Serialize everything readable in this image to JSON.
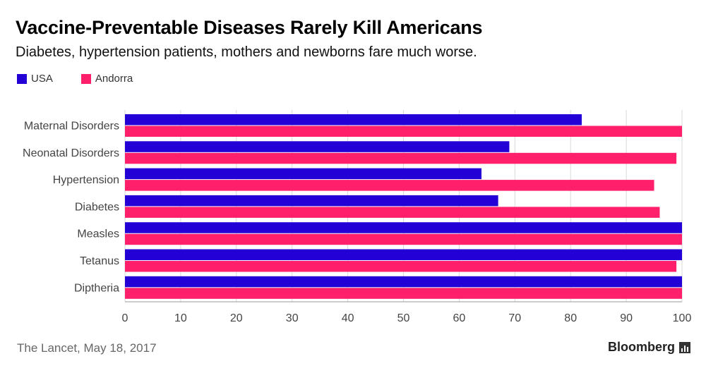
{
  "header": {
    "title": "Vaccine-Preventable Diseases Rarely Kill Americans",
    "subtitle": "Diabetes, hypertension patients, mothers and newborns fare much worse."
  },
  "footer": {
    "source": "The Lancet, May 18, 2017",
    "brand": "Bloomberg"
  },
  "colors": {
    "usa": "#2300d6",
    "andorra": "#ff1f6b",
    "grid": "#d9d9d9",
    "tick_text": "#444444"
  },
  "chart_data": {
    "type": "bar",
    "orientation": "horizontal",
    "categories": [
      "Maternal Disorders",
      "Neonatal Disorders",
      "Hypertension",
      "Diabetes",
      "Measles",
      "Tetanus",
      "Diptheria"
    ],
    "series": [
      {
        "name": "USA",
        "values": [
          82,
          69,
          64,
          67,
          100,
          100,
          100
        ]
      },
      {
        "name": "Andorra",
        "values": [
          100,
          99,
          95,
          96,
          100,
          99,
          100
        ]
      }
    ],
    "xlim": [
      0,
      100
    ],
    "xticks": [
      0,
      10,
      20,
      30,
      40,
      50,
      60,
      70,
      80,
      90,
      100
    ],
    "grid": true,
    "legend": "top-left"
  }
}
